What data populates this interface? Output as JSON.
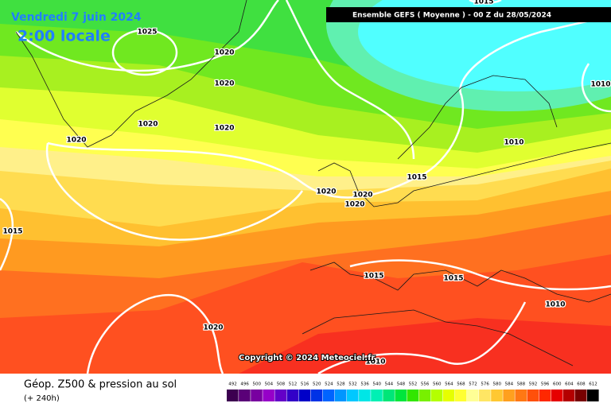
{
  "header": {
    "date": "Vendredi 7 juin 2024",
    "time": "2:00 locale"
  },
  "banner": "Ensemble GEFS  ( Moyenne )  -  00 Z du 28/05/2024",
  "copyright": "Copyright © 2024 Meteociel.fr",
  "footer": {
    "title": "Géop. Z500 & pression au sol",
    "lead": "(+ 240h)"
  },
  "legend": {
    "labels": [
      492,
      496,
      500,
      504,
      508,
      512,
      516,
      520,
      524,
      528,
      532,
      536,
      540,
      544,
      548,
      552,
      556,
      560,
      564,
      568,
      572,
      576,
      580,
      584,
      588,
      592,
      596,
      600,
      604,
      608,
      612
    ],
    "colors": [
      "#3c0050",
      "#5a0078",
      "#7800a0",
      "#9600c8",
      "#6400c8",
      "#3200c8",
      "#0000c8",
      "#0032e6",
      "#0064ff",
      "#0096ff",
      "#00c8ff",
      "#00e6e6",
      "#00f0b4",
      "#00e678",
      "#00e63c",
      "#32e600",
      "#78f000",
      "#b4ff00",
      "#e6ff00",
      "#ffff32",
      "#ffff96",
      "#ffe664",
      "#ffc832",
      "#ffa01e",
      "#ff7814",
      "#ff500a",
      "#ff2800",
      "#e60000",
      "#b40000",
      "#780000",
      "#000000"
    ]
  },
  "isobars": [
    "1025",
    "1020",
    "1020",
    "1020",
    "1020",
    "1020",
    "1020",
    "1020",
    "1020",
    "1020",
    "1015",
    "1015",
    "1015",
    "1015",
    "1015",
    "1010",
    "1010",
    "1010",
    "1010"
  ]
}
